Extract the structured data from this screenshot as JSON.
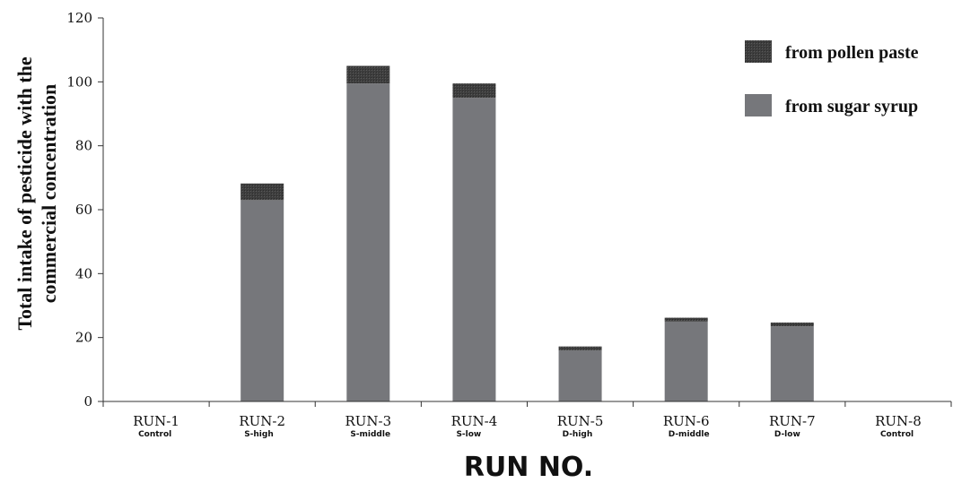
{
  "chart_data": {
    "type": "bar",
    "stacked": true,
    "categories": [
      "RUN-1",
      "RUN-2",
      "RUN-3",
      "RUN-4",
      "RUN-5",
      "RUN-6",
      "RUN-7",
      "RUN-8"
    ],
    "category_sublabels": [
      "Control",
      "S-high",
      "S-middle",
      "S-low",
      "D-high",
      "D-middle",
      "D-low",
      "Control"
    ],
    "series": [
      {
        "name": "from sugar syrup",
        "color": "#76777b",
        "values": [
          0,
          63,
          99.5,
          95,
          16,
          25,
          23.5,
          0
        ]
      },
      {
        "name": "from pollen paste",
        "color": "#3e3e3e",
        "values": [
          0,
          5.2,
          5.5,
          4.5,
          1.2,
          1.2,
          1.2,
          0
        ]
      }
    ],
    "legend_order": [
      "from pollen paste",
      "from sugar syrup"
    ],
    "legend_position": "top-right",
    "xlabel": "RUN NO.",
    "ylabel_lines": [
      "Total intake of pesticide with the",
      "commercial concentration"
    ],
    "ylim": [
      0,
      120
    ],
    "yticks": [
      0,
      20,
      40,
      60,
      80,
      100,
      120
    ],
    "grid": false
  }
}
